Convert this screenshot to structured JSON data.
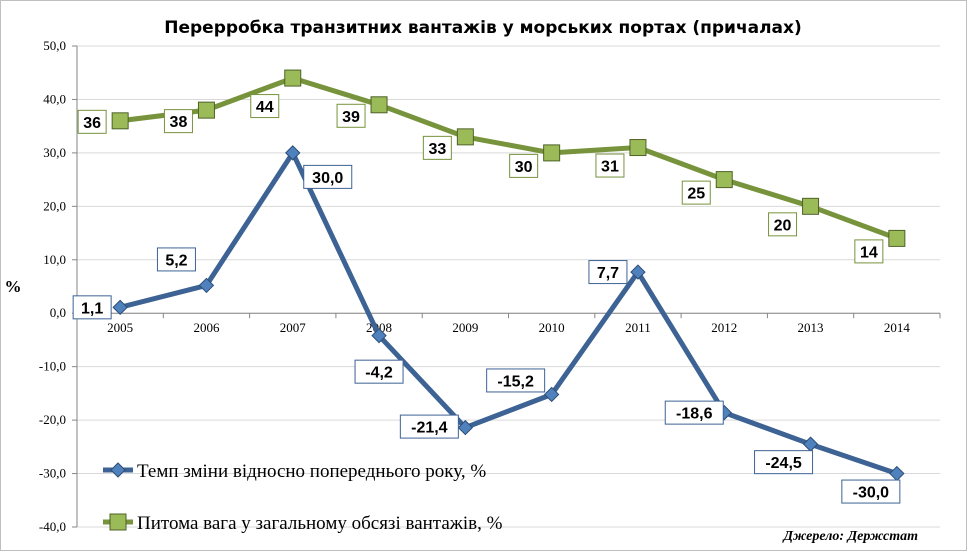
{
  "chart_data": {
    "type": "line",
    "title": "Перерробка транзитних вантажів у морських портах (причалах)",
    "ylabel": "%",
    "xlabel": "",
    "categories": [
      "2005",
      "2006",
      "2007",
      "2008",
      "2009",
      "2010",
      "2011",
      "2012",
      "2013",
      "2014"
    ],
    "ylim": [
      -40,
      50
    ],
    "yticks": [
      "50,0",
      "40,0",
      "30,0",
      "20,0",
      "10,0",
      "0,0",
      "-10,0",
      "-20,0",
      "-30,0",
      "-40,0"
    ],
    "ytick_values": [
      50,
      40,
      30,
      20,
      10,
      0,
      -10,
      -20,
      -30,
      -40
    ],
    "grid": true,
    "legend_position": "bottom-left",
    "series": [
      {
        "name": "Темп зміни відносно попереднього року, %",
        "marker": "diamond",
        "color": "#3d6294",
        "values": [
          1.1,
          5.2,
          30.0,
          -4.2,
          -21.4,
          -15.2,
          7.7,
          -18.6,
          -24.5,
          -30.0
        ],
        "labels": [
          "1,1",
          "5,2",
          "30,0",
          "-4,2",
          "-21,4",
          "-15,2",
          "7,7",
          "-18,6",
          "-24,5",
          "-30,0"
        ],
        "label_border": "#3d6294"
      },
      {
        "name": "Питома вага у загальному обсязі вантажів, %",
        "marker": "square",
        "color": "#77933c",
        "values": [
          36,
          38,
          44,
          39,
          33,
          30,
          31,
          25,
          20,
          14
        ],
        "labels": [
          "36",
          "38",
          "44",
          "39",
          "33",
          "30",
          "31",
          "25",
          "20",
          "14"
        ],
        "label_border": "#77933c"
      }
    ],
    "source": "Джерело: Держстат"
  }
}
